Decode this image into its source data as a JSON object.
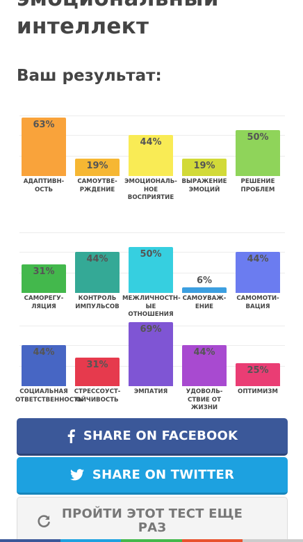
{
  "header": {
    "title": "эмоциональный\nинтеллект",
    "title_line1": "эмоциональный",
    "title_line2": "интеллект",
    "result_label": "Ваш результат:"
  },
  "chart_data": [
    {
      "type": "bar",
      "categories": [
        "АДАПТИВН-\nОСТЬ",
        "САМОУТВЕ-\nРЖДЕНИЕ",
        "ЭМОЦИОНАЛЬ-\nНОЕ ВОСПРИЯТИЕ",
        "ВЫРАЖЕНИЕ\nЭМОЦИЙ",
        "РЕШЕНИЕ\nПРОБЛЕМ"
      ],
      "values": [
        63,
        19,
        44,
        19,
        50
      ],
      "labels": [
        "63%",
        "19%",
        "44%",
        "19%",
        "50%"
      ],
      "colors": [
        "#f9a33b",
        "#f6b733",
        "#f9eb55",
        "#d2da38",
        "#8fd45a"
      ],
      "ylim": [
        0,
        100
      ]
    },
    {
      "type": "bar",
      "categories": [
        "САМОРЕГУ-\nЛЯЦИЯ",
        "КОНТРОЛЬ\nИМПУЛЬСОВ",
        "МЕЖЛИЧНОСТН-\nЫЕ ОТНОШЕНИЯ",
        "САМОУВАЖ-\nЕНИЕ",
        "САМОМОТИ-\nВАЦИЯ"
      ],
      "values": [
        31,
        44,
        50,
        6,
        44
      ],
      "labels": [
        "31%",
        "44%",
        "50%",
        "6%",
        "44%"
      ],
      "colors": [
        "#43b84c",
        "#34a996",
        "#36cfe0",
        "#3c9fe0",
        "#6b7cf0"
      ],
      "ylim": [
        0,
        100
      ]
    },
    {
      "type": "bar",
      "categories": [
        "СОЦИАЛЬНАЯ\nОТВЕТСТВЕННОСТЬ",
        "СТРЕССОУСТ-\nОЙЧИВОСТЬ",
        "ЭМПАТИЯ",
        "УДОВОЛЬ-\nСТВИЕ ОТ ЖИЗНИ",
        "ОПТИМИЗМ"
      ],
      "values": [
        44,
        31,
        69,
        44,
        25
      ],
      "labels": [
        "44%",
        "31%",
        "69%",
        "44%",
        "25%"
      ],
      "colors": [
        "#4766c4",
        "#e63a4d",
        "#7f55d4",
        "#a84ad0",
        "#ea3d74"
      ],
      "ylim": [
        0,
        100
      ]
    }
  ],
  "buttons": {
    "facebook_label": "SHARE ON FACEBOOK",
    "twitter_label": "SHARE ON TWITTER",
    "retry_label": "ПРОЙТИ ЭТОТ ТЕСТ ЕЩЕ\nРАЗ"
  },
  "icons": {
    "facebook": "facebook-icon",
    "twitter": "twitter-icon",
    "retry": "refresh-icon"
  },
  "colors": {
    "facebook": "#3b5899",
    "twitter": "#1da1e0",
    "bottom_strip": [
      "#3b5899",
      "#1da1e0",
      "#43b84c",
      "#e8522e",
      "#cccccc"
    ]
  }
}
